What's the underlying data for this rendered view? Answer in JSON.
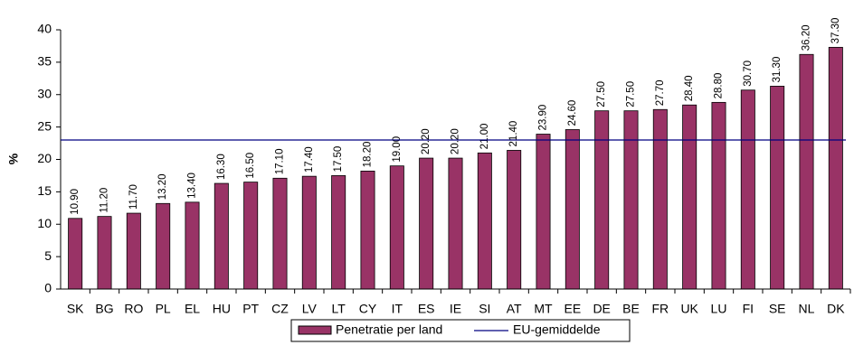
{
  "chart_data": {
    "type": "bar",
    "y_label": "%",
    "categories": [
      "SK",
      "BG",
      "RO",
      "PL",
      "EL",
      "HU",
      "PT",
      "CZ",
      "LV",
      "LT",
      "CY",
      "IT",
      "ES",
      "IE",
      "SI",
      "AT",
      "MT",
      "EE",
      "DE",
      "BE",
      "FR",
      "UK",
      "LU",
      "FI",
      "SE",
      "NL",
      "DK"
    ],
    "series": [
      {
        "name": "Penetratie per land",
        "color": "#993366",
        "values": [
          10.9,
          11.2,
          11.7,
          13.2,
          13.4,
          16.3,
          16.5,
          17.1,
          17.4,
          17.5,
          18.2,
          19.0,
          20.2,
          20.2,
          21.0,
          21.4,
          23.9,
          24.6,
          27.5,
          27.5,
          27.7,
          28.4,
          28.8,
          30.7,
          31.3,
          36.2,
          37.3
        ],
        "value_labels": [
          "10.90",
          "11.20",
          "11.70",
          "13.20",
          "13.40",
          "16.30",
          "16.50",
          "17.10",
          "17.40",
          "17.50",
          "18.20",
          "19.00",
          "20.20",
          "20.20",
          "21.00",
          "21.40",
          "23.90",
          "24.60",
          "27.50",
          "27.50",
          "27.70",
          "28.40",
          "28.80",
          "30.70",
          "31.30",
          "36.20",
          "37.30"
        ]
      }
    ],
    "reference_line": {
      "name": "EU-gemiddelde",
      "value": 23,
      "color": "#000080"
    },
    "ylim": [
      0,
      40
    ],
    "yticks": [
      0,
      5,
      10,
      15,
      20,
      25,
      30,
      35,
      40
    ],
    "legend": "bottom"
  }
}
